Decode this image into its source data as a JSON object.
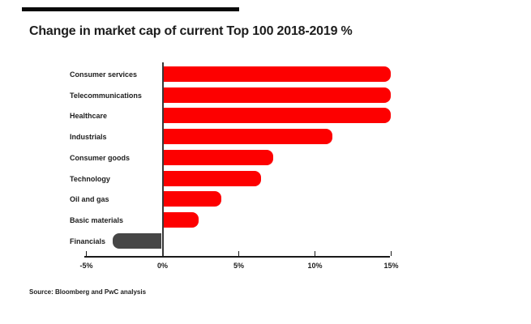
{
  "page": {
    "source": "Source: Bloomberg and PwC analysis"
  },
  "chart_data": {
    "type": "bar",
    "orientation": "horizontal",
    "title": "Change in market cap of current Top 100 2018-2019 %",
    "categories": [
      "Consumer services",
      "Telecommunications",
      "Healthcare",
      "Industrials",
      "Consumer goods",
      "Technology",
      "Oil and gas",
      "Basic materials",
      "Financials"
    ],
    "values": [
      14.9,
      14.9,
      14.9,
      11.1,
      7.2,
      6.4,
      3.8,
      2.3,
      -3.2
    ],
    "unit": "%",
    "xlabel": "",
    "ylabel": "",
    "x_ticks": [
      "-5%",
      "0%",
      "5%",
      "10%",
      "15%"
    ],
    "x_tick_values": [
      -5,
      0,
      5,
      10,
      15
    ],
    "xlim": [
      -5.2,
      15.2
    ],
    "grid": false,
    "legend": false,
    "colors": {
      "positive_bar": "#fd0000",
      "negative_bar": "#464646",
      "axis": "#1a1a1a",
      "text": "#1d1d1d",
      "background": "#ffffff"
    }
  }
}
